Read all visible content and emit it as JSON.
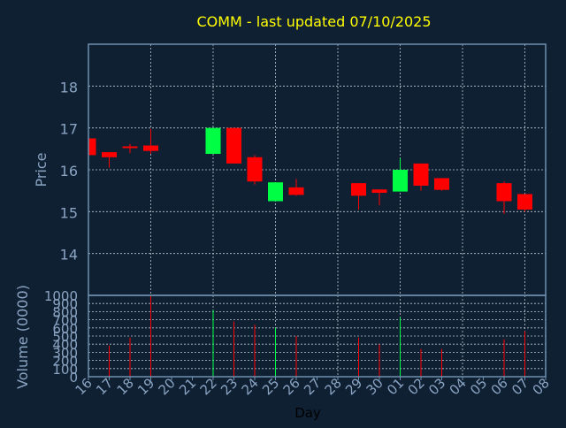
{
  "chart_data": {
    "type": "candlestick",
    "title": "COMM - last updated 07/10/2025",
    "price_panel": {
      "ylabel": "Price",
      "ylim": [
        13.0,
        19.0
      ],
      "yticks": [
        14,
        15,
        16,
        17,
        18
      ]
    },
    "volume_panel": {
      "ylabel": "Volume (0000)",
      "ylim": [
        0,
        1000
      ],
      "yticks": [
        0,
        100,
        200,
        300,
        400,
        500,
        600,
        700,
        800,
        900,
        1000
      ]
    },
    "xlabel": "Day",
    "x_tick_labels": [
      "16",
      "17",
      "18",
      "19",
      "20",
      "21",
      "22",
      "23",
      "24",
      "25",
      "26",
      "27",
      "28",
      "29",
      "30",
      "01",
      "02",
      "03",
      "04",
      "05",
      "06",
      "07",
      "08"
    ],
    "candles": [
      {
        "day": "16",
        "index": 0,
        "open": 16.75,
        "high": 16.75,
        "low": 16.35,
        "close": 16.35,
        "volume": 0
      },
      {
        "day": "17",
        "index": 1,
        "open": 16.42,
        "high": 16.42,
        "low": 16.05,
        "close": 16.3,
        "volume": 380
      },
      {
        "day": "18",
        "index": 2,
        "open": 16.56,
        "high": 16.62,
        "low": 16.4,
        "close": 16.53,
        "volume": 480
      },
      {
        "day": "19",
        "index": 3,
        "open": 16.58,
        "high": 16.98,
        "low": 16.38,
        "close": 16.45,
        "volume": 1000
      },
      {
        "day": "22",
        "index": 6,
        "open": 16.38,
        "high": 17.0,
        "low": 16.38,
        "close": 17.0,
        "volume": 820
      },
      {
        "day": "23",
        "index": 7,
        "open": 17.0,
        "high": 17.0,
        "low": 16.15,
        "close": 16.15,
        "volume": 680
      },
      {
        "day": "24",
        "index": 8,
        "open": 16.3,
        "high": 16.35,
        "low": 15.65,
        "close": 15.72,
        "volume": 640
      },
      {
        "day": "25",
        "index": 9,
        "open": 15.25,
        "high": 15.7,
        "low": 15.25,
        "close": 15.7,
        "volume": 600
      },
      {
        "day": "26",
        "index": 10,
        "open": 15.58,
        "high": 15.78,
        "low": 15.38,
        "close": 15.4,
        "volume": 500
      },
      {
        "day": "29",
        "index": 13,
        "open": 15.68,
        "high": 15.68,
        "low": 15.05,
        "close": 15.38,
        "volume": 480
      },
      {
        "day": "30",
        "index": 14,
        "open": 15.53,
        "high": 15.53,
        "low": 15.15,
        "close": 15.45,
        "volume": 400
      },
      {
        "day": "01",
        "index": 15,
        "open": 15.48,
        "high": 16.28,
        "low": 15.48,
        "close": 16.0,
        "volume": 730
      },
      {
        "day": "02",
        "index": 16,
        "open": 16.15,
        "high": 16.15,
        "low": 15.5,
        "close": 15.62,
        "volume": 340
      },
      {
        "day": "03",
        "index": 17,
        "open": 15.8,
        "high": 15.8,
        "low": 15.5,
        "close": 15.52,
        "volume": 340
      },
      {
        "day": "06",
        "index": 20,
        "open": 15.68,
        "high": 15.72,
        "low": 14.95,
        "close": 15.25,
        "volume": 460
      },
      {
        "day": "07",
        "index": 21,
        "open": 15.42,
        "high": 15.42,
        "low": 15.0,
        "close": 15.05,
        "volume": 560
      }
    ],
    "grid": true,
    "colors": {
      "background": "#0f2033",
      "up": "#00ff44",
      "down": "#ff0000",
      "axis": "#6f8fae",
      "grid": "#bfc8d2",
      "title": "#ffff00",
      "tick_label": "#8aa4c2",
      "xlabel": "#000000"
    }
  }
}
